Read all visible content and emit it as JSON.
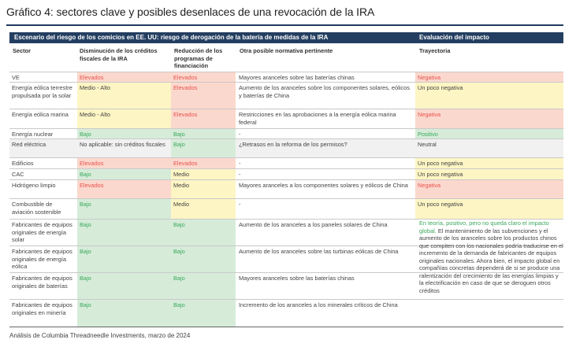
{
  "title": "Gráfico 4: sectores clave y posibles desenlaces de una revocación de la IRA",
  "header": {
    "left": "Escenario del riesgo de los comicios en EE. UU: riesgo de derogación de la batería de medidas de la IRA",
    "right": "Evaluación del impacto"
  },
  "columns": {
    "sector": "Sector",
    "tax_credits": "Disminución de los créditos fiscales de la IRA",
    "funding": "Reducción de los programas de financiación",
    "other": "Otra posible normativa pertinente",
    "trajectory": "Trayectoria"
  },
  "rows": [
    {
      "sector": "VE",
      "tax": "Elevados",
      "fund": "Elevados",
      "other": "Mayores aranceles sobre las baterías chinas",
      "traj": "Negativa"
    },
    {
      "sector": "Energía eólica terrestre propulsada por la solar",
      "tax": "Medio - Alto",
      "fund": "Elevados",
      "other": "Aumento de los aranceles sobre los componentes solares, eólicos y baterías de China",
      "traj": "Un poco negativa"
    },
    {
      "sector": "Energía eólica marina",
      "tax": "Medio - Alto",
      "fund": "Elevados",
      "other": "Restricciones en las aprobaciones a la energía eólica marina federal",
      "traj": "Negativa"
    },
    {
      "sector": "Energía nuclear",
      "tax": "Bajo",
      "fund": "Bajo",
      "other": "-",
      "traj": "Positivo"
    },
    {
      "sector": "Red eléctrica",
      "tax": "No aplicable: sin créditos fiscales",
      "fund": "Bajo",
      "other": "¿Retrasos en la reforma de los permisos?",
      "traj": "Neutral"
    },
    {
      "sector": "Edificios",
      "tax": "Elevados",
      "fund": "Elevados",
      "other": "-",
      "traj": "Un poco negativa"
    },
    {
      "sector": "CAC",
      "tax": "Bajo",
      "fund": "Medio",
      "other": "-",
      "traj": "Un poco negativa"
    },
    {
      "sector": "Hidrógeno limpio",
      "tax": "Elevados",
      "fund": "Medio",
      "other": "Mayores aranceles a los componentes solares y eólicos de China",
      "traj": "Negativa"
    },
    {
      "sector": "Combustible de aviación sostenible",
      "tax": "Bajo",
      "fund": "Medio",
      "other": "-",
      "traj": "Un poco negativa"
    },
    {
      "sector": "Fabricantes de equipos originales de energía solar",
      "tax": "Bajo",
      "fund": "Bajo",
      "other": "Aumento de los aranceles a los paneles solares de China"
    },
    {
      "sector": "Fabricantes de equipos originales de energía eólica",
      "tax": "Bajo",
      "fund": "Bajo",
      "other": "Aumento de los aranceles sobre las turbinas eólicas de China"
    },
    {
      "sector": "Fabricantes de equipos originales de baterías",
      "tax": "Bajo",
      "fund": "Bajo",
      "other": "Mayores aranceles sobre las baterías chinas"
    },
    {
      "sector": "Fabricantes de equipos originales en minería",
      "tax": "Bajo",
      "fund": "Bajo",
      "other": "Incremento de los aranceles a los minerales críticos de China"
    }
  ],
  "merged_assessment": {
    "highlight": "En teoría, positivo, pero no queda claro el impacto global.",
    "body": "El mantenimiento de las subvenciones y el aumento de los aranceles sobre los productos chinos que compiten con los nacionales podría traducirse en el incremento de la demanda de fabricantes de equipos originales nacionales. Ahora bien, el impacto global en compañías concretas dependerá de si se produce una ralentización del crecimiento de las energías limpias y la electrificación en caso de que se deroguen otros créditos"
  },
  "source": "Análisis de Columbia Threadneedle Investments, marzo de 2024",
  "colors": {
    "header_bg": "#233e60",
    "green_bg": "#d6ecd9",
    "green_text": "#3aa85a",
    "yellow_bg": "#fdf5c4",
    "red_bg": "#fbd8cd",
    "red_text": "#e8524f"
  }
}
